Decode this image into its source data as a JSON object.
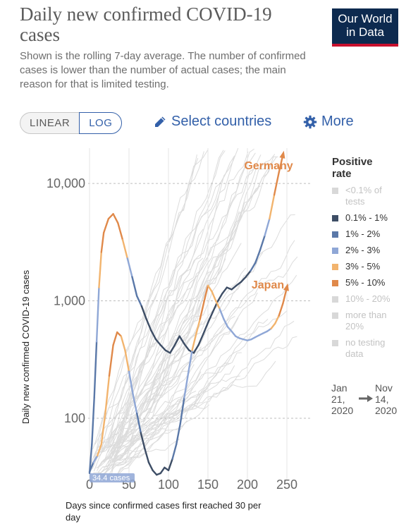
{
  "header": {
    "title": "Daily new confirmed COVID-19 cases",
    "subtitle": "Shown is the rolling 7-day average. The number of confirmed cases is lower than the number of actual cases; the main reason for that is limited testing.",
    "logo_line1": "Our World",
    "logo_line2": "in Data"
  },
  "controls": {
    "linear_label": "LINEAR",
    "log_label": "LOG",
    "select_countries_label": "Select countries",
    "more_label": "More",
    "pencil_icon": "pencil-icon",
    "gear_icon": "gear-icon",
    "active_scale": "log"
  },
  "legend": {
    "title": "Positive rate",
    "items": [
      {
        "label": "<0.1% of tests",
        "color": "#d8d8d8",
        "muted": true
      },
      {
        "label": "0.1% - 1%",
        "color": "#3d4d65",
        "muted": false
      },
      {
        "label": "1% - 2%",
        "color": "#5a78a8",
        "muted": false
      },
      {
        "label": "2% - 3%",
        "color": "#8fa7d6",
        "muted": false
      },
      {
        "label": "3% - 5%",
        "color": "#f2b46e",
        "muted": false
      },
      {
        "label": "5% - 10%",
        "color": "#e0894a",
        "muted": false
      },
      {
        "label": "10% - 20%",
        "color": "#d8d8d8",
        "muted": true
      },
      {
        "label": "more than 20%",
        "color": "#d8d8d8",
        "muted": true
      },
      {
        "label": "no testing data",
        "color": "#d8d8d8",
        "muted": true
      }
    ]
  },
  "timeline": {
    "start": "Jan 21, 2020",
    "end": "Nov 14, 2020"
  },
  "chart_data": {
    "type": "line",
    "ylabel": "Daily new confirmed COVID-19 cases",
    "xlabel": "Days since confirmed cases first reached 30 per day",
    "y_scale": "log",
    "ylim": [
      30,
      20000
    ],
    "xlim": [
      0,
      250
    ],
    "x_ticks": [
      0,
      50,
      100,
      150,
      200,
      250
    ],
    "y_ticks": [
      {
        "value": 100,
        "label": "100"
      },
      {
        "value": 1000,
        "label": "1,000"
      },
      {
        "value": 10000,
        "label": "10,000"
      }
    ],
    "min_annotation": "34.4 cases",
    "grid": true,
    "series": [
      {
        "name": "Germany",
        "label_color": "#e0894a",
        "points": [
          {
            "x": 0,
            "y": 34,
            "c": "#5a78a8"
          },
          {
            "x": 3,
            "y": 60,
            "c": "#5a78a8"
          },
          {
            "x": 6,
            "y": 150,
            "c": "#5a78a8"
          },
          {
            "x": 9,
            "y": 450,
            "c": "#5a78a8"
          },
          {
            "x": 12,
            "y": 1300,
            "c": "#8fa7d6"
          },
          {
            "x": 15,
            "y": 2600,
            "c": "#f2b46e"
          },
          {
            "x": 18,
            "y": 3800,
            "c": "#e0894a"
          },
          {
            "x": 24,
            "y": 5000,
            "c": "#e0894a"
          },
          {
            "x": 30,
            "y": 5500,
            "c": "#e0894a"
          },
          {
            "x": 36,
            "y": 4600,
            "c": "#e0894a"
          },
          {
            "x": 42,
            "y": 3300,
            "c": "#e0894a"
          },
          {
            "x": 48,
            "y": 2300,
            "c": "#f2b46e"
          },
          {
            "x": 54,
            "y": 1600,
            "c": "#8fa7d6"
          },
          {
            "x": 60,
            "y": 1100,
            "c": "#5a78a8"
          },
          {
            "x": 66,
            "y": 900,
            "c": "#5a78a8"
          },
          {
            "x": 72,
            "y": 700,
            "c": "#3d4d65"
          },
          {
            "x": 78,
            "y": 560,
            "c": "#3d4d65"
          },
          {
            "x": 84,
            "y": 470,
            "c": "#3d4d65"
          },
          {
            "x": 90,
            "y": 420,
            "c": "#3d4d65"
          },
          {
            "x": 96,
            "y": 380,
            "c": "#3d4d65"
          },
          {
            "x": 102,
            "y": 360,
            "c": "#3d4d65"
          },
          {
            "x": 108,
            "y": 420,
            "c": "#3d4d65"
          },
          {
            "x": 114,
            "y": 500,
            "c": "#3d4d65"
          },
          {
            "x": 120,
            "y": 430,
            "c": "#3d4d65"
          },
          {
            "x": 126,
            "y": 380,
            "c": "#3d4d65"
          },
          {
            "x": 132,
            "y": 360,
            "c": "#3d4d65"
          },
          {
            "x": 138,
            "y": 420,
            "c": "#3d4d65"
          },
          {
            "x": 144,
            "y": 520,
            "c": "#3d4d65"
          },
          {
            "x": 150,
            "y": 650,
            "c": "#3d4d65"
          },
          {
            "x": 156,
            "y": 800,
            "c": "#3d4d65"
          },
          {
            "x": 162,
            "y": 980,
            "c": "#3d4d65"
          },
          {
            "x": 168,
            "y": 1150,
            "c": "#3d4d65"
          },
          {
            "x": 174,
            "y": 1300,
            "c": "#3d4d65"
          },
          {
            "x": 180,
            "y": 1250,
            "c": "#3d4d65"
          },
          {
            "x": 186,
            "y": 1350,
            "c": "#3d4d65"
          },
          {
            "x": 192,
            "y": 1450,
            "c": "#3d4d65"
          },
          {
            "x": 198,
            "y": 1600,
            "c": "#3d4d65"
          },
          {
            "x": 204,
            "y": 1800,
            "c": "#3d4d65"
          },
          {
            "x": 210,
            "y": 2100,
            "c": "#5a78a8"
          },
          {
            "x": 216,
            "y": 2700,
            "c": "#5a78a8"
          },
          {
            "x": 222,
            "y": 3600,
            "c": "#5a78a8"
          },
          {
            "x": 228,
            "y": 5000,
            "c": "#8fa7d6"
          },
          {
            "x": 234,
            "y": 8000,
            "c": "#f2b46e"
          },
          {
            "x": 240,
            "y": 12500,
            "c": "#e0894a"
          },
          {
            "x": 245,
            "y": 17500,
            "c": "#e0894a"
          }
        ]
      },
      {
        "name": "Japan",
        "label_color": "#e0894a",
        "points": [
          {
            "x": 0,
            "y": 35,
            "c": "#5a78a8"
          },
          {
            "x": 5,
            "y": 42,
            "c": "#5a78a8"
          },
          {
            "x": 10,
            "y": 48,
            "c": "#8fa7d6"
          },
          {
            "x": 15,
            "y": 60,
            "c": "#f2b46e"
          },
          {
            "x": 20,
            "y": 110,
            "c": "#f2b46e"
          },
          {
            "x": 25,
            "y": 230,
            "c": "#f2b46e"
          },
          {
            "x": 30,
            "y": 420,
            "c": "#e0894a"
          },
          {
            "x": 35,
            "y": 540,
            "c": "#e0894a"
          },
          {
            "x": 40,
            "y": 500,
            "c": "#e0894a"
          },
          {
            "x": 45,
            "y": 380,
            "c": "#f2b46e"
          },
          {
            "x": 50,
            "y": 250,
            "c": "#f2b46e"
          },
          {
            "x": 55,
            "y": 160,
            "c": "#8fa7d6"
          },
          {
            "x": 60,
            "y": 110,
            "c": "#8fa7d6"
          },
          {
            "x": 65,
            "y": 75,
            "c": "#5a78a8"
          },
          {
            "x": 70,
            "y": 55,
            "c": "#3d4d65"
          },
          {
            "x": 75,
            "y": 42,
            "c": "#3d4d65"
          },
          {
            "x": 80,
            "y": 36,
            "c": "#3d4d65"
          },
          {
            "x": 85,
            "y": 33,
            "c": "#3d4d65"
          },
          {
            "x": 90,
            "y": 34,
            "c": "#3d4d65"
          },
          {
            "x": 95,
            "y": 38,
            "c": "#3d4d65"
          },
          {
            "x": 100,
            "y": 36,
            "c": "#3d4d65"
          },
          {
            "x": 105,
            "y": 45,
            "c": "#3d4d65"
          },
          {
            "x": 110,
            "y": 60,
            "c": "#5a78a8"
          },
          {
            "x": 115,
            "y": 90,
            "c": "#5a78a8"
          },
          {
            "x": 120,
            "y": 150,
            "c": "#5a78a8"
          },
          {
            "x": 125,
            "y": 240,
            "c": "#8fa7d6"
          },
          {
            "x": 130,
            "y": 380,
            "c": "#8fa7d6"
          },
          {
            "x": 135,
            "y": 520,
            "c": "#f2b46e"
          },
          {
            "x": 140,
            "y": 700,
            "c": "#f2b46e"
          },
          {
            "x": 145,
            "y": 980,
            "c": "#e0894a"
          },
          {
            "x": 150,
            "y": 1350,
            "c": "#e0894a"
          },
          {
            "x": 155,
            "y": 1200,
            "c": "#f2b46e"
          },
          {
            "x": 160,
            "y": 1000,
            "c": "#f2b46e"
          },
          {
            "x": 165,
            "y": 850,
            "c": "#f2b46e"
          },
          {
            "x": 170,
            "y": 700,
            "c": "#8fa7d6"
          },
          {
            "x": 175,
            "y": 600,
            "c": "#8fa7d6"
          },
          {
            "x": 180,
            "y": 550,
            "c": "#8fa7d6"
          },
          {
            "x": 185,
            "y": 500,
            "c": "#8fa7d6"
          },
          {
            "x": 190,
            "y": 480,
            "c": "#8fa7d6"
          },
          {
            "x": 195,
            "y": 470,
            "c": "#8fa7d6"
          },
          {
            "x": 200,
            "y": 460,
            "c": "#8fa7d6"
          },
          {
            "x": 205,
            "y": 470,
            "c": "#8fa7d6"
          },
          {
            "x": 210,
            "y": 490,
            "c": "#8fa7d6"
          },
          {
            "x": 215,
            "y": 510,
            "c": "#8fa7d6"
          },
          {
            "x": 220,
            "y": 530,
            "c": "#8fa7d6"
          },
          {
            "x": 225,
            "y": 550,
            "c": "#8fa7d6"
          },
          {
            "x": 230,
            "y": 580,
            "c": "#8fa7d6"
          },
          {
            "x": 235,
            "y": 640,
            "c": "#f2b46e"
          },
          {
            "x": 240,
            "y": 750,
            "c": "#f2b46e"
          },
          {
            "x": 245,
            "y": 950,
            "c": "#e0894a"
          },
          {
            "x": 250,
            "y": 1300,
            "c": "#e0894a"
          }
        ]
      }
    ]
  }
}
